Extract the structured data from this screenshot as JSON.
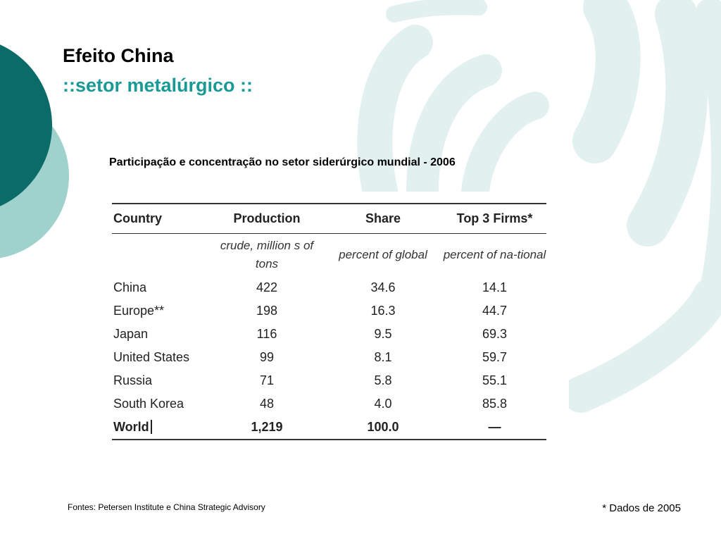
{
  "slide": {
    "title": "Efeito China",
    "subtitle": "::setor metalúrgico ::",
    "caption": "Participação e concentração no setor siderúrgico mundial - 2006",
    "sources": "Fontes: Petersen Institute e China Strategic Advisory",
    "footnote": "* Dados de 2005"
  },
  "colors": {
    "dark_teal": "#0b6b69",
    "light_teal": "#9fd1cd",
    "pale_teal": "#e2f1ef",
    "accent": "#1a9a96"
  },
  "table": {
    "headers": [
      "Country",
      "Production",
      "Share",
      "Top 3 Firms*"
    ],
    "units": [
      "",
      "crude, million s of tons",
      "percent of global",
      "percent of na-tional"
    ],
    "rows": [
      [
        "China",
        "422",
        "34.6",
        "14.1"
      ],
      [
        "Europe**",
        "198",
        "16.3",
        "44.7"
      ],
      [
        "Japan",
        "116",
        "9.5",
        "69.3"
      ],
      [
        "United States",
        "99",
        "8.1",
        "59.7"
      ],
      [
        "Russia",
        "71",
        "5.8",
        "55.1"
      ],
      [
        "South Korea",
        "48",
        "4.0",
        "85.8"
      ]
    ],
    "total": [
      "World",
      "1,219",
      "100.0",
      "—"
    ]
  }
}
